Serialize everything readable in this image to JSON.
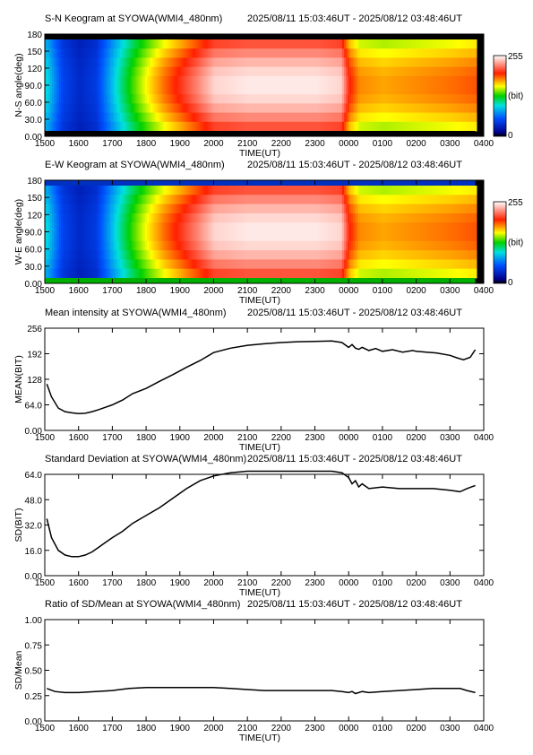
{
  "station": "SYOWA",
  "time_range": "2025/08/11 15:03:46UT - 2025/08/12 03:48:46UT",
  "colors": {
    "curve": "#000000",
    "frame": "#000000"
  },
  "chart_data": [
    {
      "id": "sn",
      "type": "heatmap",
      "title": "S-N Keogram at SYOWA(WMI4_480nm)",
      "subtitle": "2025/08/11 15:03:46UT - 2025/08/12 03:48:46UT",
      "xlabel": "TIME(UT)",
      "ylabel": "N-S angle(deg)",
      "x_ticks": [
        "1500",
        "1600",
        "1700",
        "1800",
        "1900",
        "2000",
        "2100",
        "2200",
        "2300",
        "0000",
        "0100",
        "0200",
        "0300",
        "0400"
      ],
      "y_ticks": [
        "0.00",
        "30.0",
        "60.0",
        "90.0",
        "120",
        "150",
        "180"
      ],
      "ylim": [
        0,
        180
      ],
      "colorbar": {
        "max_label": "255",
        "unit_label": "(bit)",
        "min_label": "0",
        "range": [
          0,
          255
        ]
      },
      "colormap": "rainbow (black-blue-cyan-green-yellow-red-white)",
      "time_hours": [
        15.06,
        15.5,
        16.0,
        16.5,
        17.0,
        17.5,
        18.0,
        18.5,
        19.0,
        19.5,
        20.0,
        21.0,
        22.0,
        23.0,
        23.75,
        24.0,
        24.3,
        25.0,
        26.0,
        27.0,
        27.75
      ],
      "center_intensity": [
        95,
        50,
        35,
        45,
        90,
        130,
        160,
        185,
        205,
        225,
        245,
        250,
        250,
        250,
        245,
        200,
        180,
        175,
        180,
        185,
        190
      ]
    },
    {
      "id": "ew",
      "type": "heatmap",
      "title": "E-W Keogram at SYOWA(WMI4_480nm)",
      "subtitle": "2025/08/11 15:03:46UT - 2025/08/12 03:48:46UT",
      "xlabel": "TIME(UT)",
      "ylabel": "W-E angle(deg)",
      "x_ticks": [
        "1500",
        "1600",
        "1700",
        "1800",
        "1900",
        "2000",
        "2100",
        "2200",
        "2300",
        "0000",
        "0100",
        "0200",
        "0300",
        "0400"
      ],
      "y_ticks": [
        "0.00",
        "30.0",
        "60.0",
        "90.0",
        "120",
        "150",
        "180"
      ],
      "ylim": [
        0,
        180
      ],
      "colorbar": {
        "max_label": "255",
        "unit_label": "(bit)",
        "min_label": "0",
        "range": [
          0,
          255
        ]
      },
      "colormap": "rainbow (black-blue-cyan-green-yellow-red-white)",
      "time_hours": [
        15.06,
        15.5,
        16.0,
        16.5,
        17.0,
        17.5,
        18.0,
        18.5,
        19.0,
        19.5,
        20.0,
        21.0,
        22.0,
        23.0,
        23.75,
        24.0,
        24.3,
        25.0,
        26.0,
        27.0,
        27.75
      ],
      "center_intensity": [
        95,
        50,
        35,
        45,
        90,
        130,
        160,
        185,
        205,
        225,
        245,
        250,
        250,
        250,
        245,
        200,
        180,
        175,
        180,
        185,
        190
      ]
    },
    {
      "id": "mean",
      "type": "line",
      "title": "Mean intensity at SYOWA(WMI4_480nm)",
      "subtitle": "2025/08/11 15:03:46UT - 2025/08/12 03:48:46UT",
      "xlabel": "TIME(UT)",
      "ylabel": "MEAN(BIT)",
      "x_ticks": [
        "1500",
        "1600",
        "1700",
        "1800",
        "1900",
        "2000",
        "2100",
        "2200",
        "2300",
        "0000",
        "0100",
        "0200",
        "0300",
        "0400"
      ],
      "y_ticks": [
        "0.00",
        "64.0",
        "128",
        "192",
        "256"
      ],
      "ylim": [
        0,
        256
      ],
      "x": [
        15.06,
        15.2,
        15.4,
        15.6,
        15.8,
        16.0,
        16.2,
        16.4,
        16.6,
        16.8,
        17.0,
        17.3,
        17.6,
        18.0,
        18.4,
        18.8,
        19.2,
        19.6,
        20.0,
        20.5,
        21.0,
        21.5,
        22.0,
        22.5,
        23.0,
        23.5,
        23.8,
        24.0,
        24.1,
        24.2,
        24.3,
        24.4,
        24.6,
        24.8,
        25.0,
        25.3,
        25.6,
        25.9,
        26.0,
        26.3,
        26.6,
        27.0,
        27.2,
        27.4,
        27.6,
        27.75
      ],
      "y": [
        116,
        84,
        56,
        47,
        44,
        42,
        43,
        47,
        52,
        58,
        64,
        76,
        92,
        105,
        123,
        140,
        158,
        175,
        195,
        206,
        213,
        217,
        220,
        222,
        223,
        224,
        220,
        208,
        215,
        206,
        203,
        208,
        200,
        205,
        198,
        202,
        196,
        200,
        198,
        196,
        194,
        188,
        182,
        177,
        183,
        202
      ]
    },
    {
      "id": "sd",
      "type": "line",
      "title": "Standard Deviation at SYOWA(WMI4_480nm)",
      "subtitle": "2025/08/11 15:03:46UT - 2025/08/12 03:48:46UT",
      "xlabel": "TIME(UT)",
      "ylabel": "SD(BIT)",
      "x_ticks": [
        "1500",
        "1600",
        "1700",
        "1800",
        "1900",
        "2000",
        "2100",
        "2200",
        "2300",
        "0000",
        "0100",
        "0200",
        "0300",
        "0400"
      ],
      "y_ticks": [
        "0.00",
        "16.0",
        "32.0",
        "48.0",
        "64.0"
      ],
      "ylim": [
        0,
        64
      ],
      "x": [
        15.06,
        15.2,
        15.4,
        15.6,
        15.8,
        16.0,
        16.2,
        16.4,
        16.6,
        16.8,
        17.0,
        17.3,
        17.6,
        18.0,
        18.4,
        18.8,
        19.2,
        19.6,
        20.0,
        20.5,
        21.0,
        21.5,
        22.0,
        22.5,
        23.0,
        23.5,
        23.8,
        24.0,
        24.1,
        24.2,
        24.3,
        24.4,
        24.6,
        25.0,
        25.5,
        26.0,
        26.5,
        27.0,
        27.3,
        27.5,
        27.75
      ],
      "y": [
        36,
        24,
        16,
        13,
        12,
        12,
        13,
        15,
        18,
        21,
        24,
        28,
        33,
        38,
        43,
        49,
        55,
        60,
        63,
        65,
        66,
        66,
        66,
        66,
        66,
        66,
        65,
        62,
        58,
        60,
        56,
        58,
        55,
        56,
        55,
        55,
        55,
        54,
        53,
        55,
        57
      ]
    },
    {
      "id": "ratio",
      "type": "line",
      "title": "Ratio of SD/Mean at SYOWA(WMI4_480nm)",
      "subtitle": "2025/08/11 15:03:46UT - 2025/08/12 03:48:46UT",
      "xlabel": "TIME(UT)",
      "ylabel": "SD/Mean",
      "x_ticks": [
        "1500",
        "1600",
        "1700",
        "1800",
        "1900",
        "2000",
        "2100",
        "2200",
        "2300",
        "0000",
        "0100",
        "0200",
        "0300",
        "0400"
      ],
      "y_ticks": [
        "0.00",
        "0.25",
        "0.50",
        "0.75",
        "1.00"
      ],
      "ylim": [
        0,
        1
      ],
      "x": [
        15.06,
        15.3,
        15.6,
        16.0,
        16.5,
        17.0,
        17.5,
        18.0,
        18.5,
        19.0,
        19.5,
        20.0,
        20.5,
        21.0,
        21.5,
        22.0,
        22.5,
        23.0,
        23.5,
        23.8,
        24.0,
        24.1,
        24.2,
        24.4,
        24.6,
        25.0,
        25.5,
        26.0,
        26.5,
        27.0,
        27.3,
        27.5,
        27.75
      ],
      "y": [
        0.32,
        0.29,
        0.28,
        0.28,
        0.29,
        0.3,
        0.32,
        0.33,
        0.33,
        0.33,
        0.33,
        0.33,
        0.32,
        0.31,
        0.3,
        0.3,
        0.3,
        0.3,
        0.3,
        0.29,
        0.28,
        0.29,
        0.27,
        0.29,
        0.28,
        0.29,
        0.3,
        0.31,
        0.32,
        0.32,
        0.32,
        0.3,
        0.28
      ]
    }
  ]
}
